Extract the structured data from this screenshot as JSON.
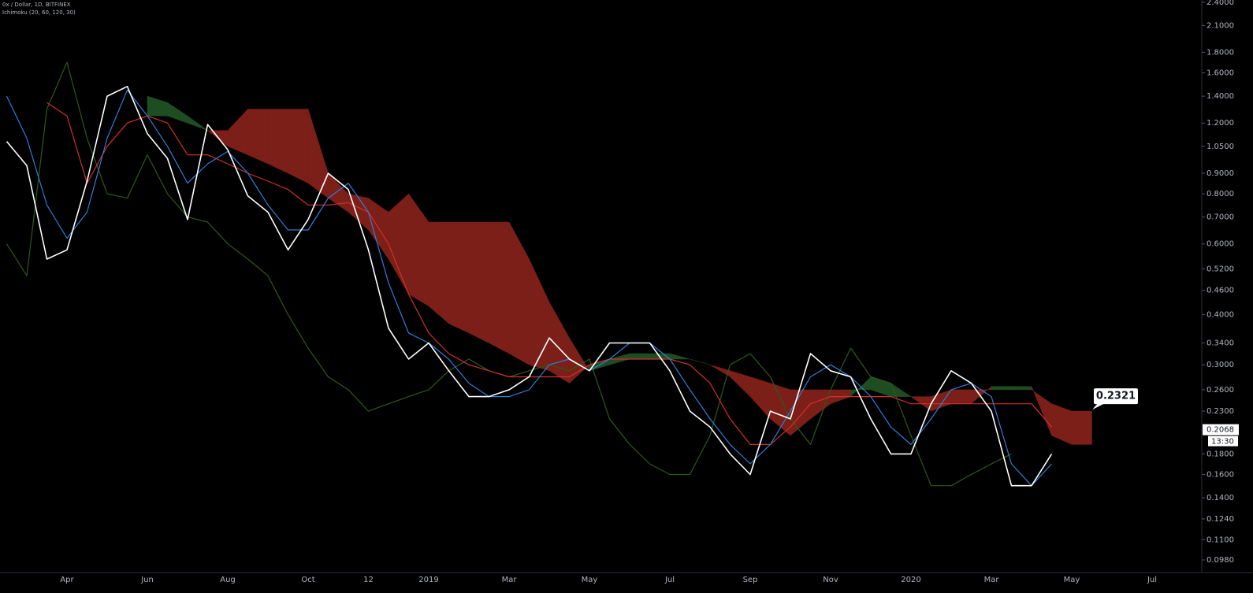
{
  "chart_data": {
    "type": "ichimoku",
    "title": "0x / Dollar, 1D, BITFINEX",
    "subtitle": "Ichimoku (20, 60, 120, 30)",
    "log_scale": true,
    "categories": [
      null,
      null,
      null,
      "Apr",
      null,
      null,
      null,
      "Jun",
      null,
      null,
      null,
      "Aug",
      null,
      null,
      null,
      "Oct",
      null,
      null,
      "12",
      null,
      null,
      "2019",
      null,
      null,
      null,
      "Mar",
      null,
      null,
      null,
      "May",
      null,
      null,
      null,
      "Jul",
      null,
      null,
      null,
      "Sep",
      null,
      null,
      null,
      "Nov",
      null,
      null,
      null,
      "2020",
      null,
      null,
      null,
      "Mar",
      null,
      null,
      null,
      "May",
      null,
      null,
      null,
      "Jul"
    ],
    "series": [
      {
        "color": "#2d5a15",
        "values": [
          0.6,
          0.5,
          1.3,
          1.7,
          1.1,
          0.8,
          0.78,
          1.0,
          0.8,
          0.7,
          0.68,
          0.6,
          0.55,
          0.5,
          0.4,
          0.33,
          0.28,
          0.26,
          0.23,
          0.24,
          0.25,
          0.26,
          0.29,
          0.31,
          0.29,
          0.28,
          0.29,
          0.3,
          0.29,
          0.31,
          0.22,
          0.19,
          0.17,
          0.16,
          0.16,
          0.2,
          0.3,
          0.32,
          0.28,
          0.22,
          0.19,
          0.26,
          0.33,
          0.28,
          0.27,
          0.2,
          0.15,
          0.15,
          0.16,
          0.17,
          0.18,
          null,
          null,
          null,
          null,
          null,
          null,
          null
        ]
      },
      {
        "color": "#d0302a",
        "values": [
          null,
          null,
          1.35,
          1.25,
          0.85,
          1.05,
          1.2,
          1.25,
          1.2,
          1.0,
          1.0,
          0.95,
          0.9,
          0.86,
          0.82,
          0.75,
          0.75,
          0.76,
          0.72,
          0.6,
          0.45,
          0.36,
          0.32,
          0.3,
          0.29,
          0.28,
          0.28,
          0.28,
          0.28,
          0.3,
          0.31,
          0.31,
          0.31,
          0.31,
          0.3,
          0.27,
          0.22,
          0.19,
          0.19,
          0.21,
          0.24,
          0.25,
          0.25,
          0.25,
          0.25,
          0.24,
          0.24,
          0.24,
          0.24,
          0.24,
          0.24,
          0.24,
          0.21,
          null,
          null,
          null,
          null,
          null
        ]
      },
      {
        "color": "#2e7ed6",
        "values": [
          1.4,
          1.1,
          0.75,
          0.62,
          0.72,
          1.1,
          1.45,
          1.25,
          1.05,
          0.85,
          0.95,
          1.02,
          0.9,
          0.75,
          0.65,
          0.65,
          0.78,
          0.85,
          0.72,
          0.48,
          0.36,
          0.34,
          0.31,
          0.27,
          0.25,
          0.25,
          0.26,
          0.3,
          0.31,
          0.29,
          0.31,
          0.34,
          0.34,
          0.31,
          0.26,
          0.22,
          0.19,
          0.17,
          0.19,
          0.23,
          0.28,
          0.3,
          0.28,
          0.25,
          0.21,
          0.19,
          0.22,
          0.26,
          0.27,
          0.25,
          0.17,
          0.15,
          0.17,
          null,
          null,
          null,
          null,
          null
        ]
      },
      {
        "color": "#ffffff",
        "values": [
          1.08,
          0.94,
          0.55,
          0.58,
          0.86,
          1.4,
          1.48,
          1.13,
          0.98,
          0.69,
          1.19,
          1.03,
          0.79,
          0.72,
          0.58,
          0.69,
          0.9,
          0.82,
          0.58,
          0.37,
          0.31,
          0.34,
          0.29,
          0.25,
          0.25,
          0.26,
          0.28,
          0.35,
          0.31,
          0.29,
          0.34,
          0.34,
          0.34,
          0.29,
          0.23,
          0.21,
          0.18,
          0.16,
          0.23,
          0.22,
          0.32,
          0.29,
          0.28,
          0.22,
          0.18,
          0.18,
          0.24,
          0.29,
          0.27,
          0.23,
          0.15,
          0.15,
          0.18,
          null,
          null,
          null,
          null,
          null
        ]
      }
    ],
    "cloud": {
      "up_color": "#1f4d22",
      "down_color": "#7b1f18",
      "span_a": [
        null,
        null,
        null,
        null,
        null,
        null,
        null,
        1.4,
        1.35,
        1.25,
        1.15,
        1.05,
        1.0,
        0.95,
        0.9,
        0.85,
        0.78,
        0.72,
        0.65,
        0.55,
        0.45,
        0.42,
        0.38,
        0.36,
        0.34,
        0.32,
        0.3,
        0.29,
        0.27,
        0.3,
        0.31,
        0.32,
        0.32,
        0.32,
        0.31,
        0.3,
        0.28,
        0.25,
        0.22,
        0.2,
        0.22,
        0.24,
        0.25,
        0.28,
        0.27,
        0.25,
        0.23,
        0.24,
        0.24,
        0.265,
        0.265,
        0.265,
        0.2,
        0.19,
        0.19,
        null,
        null,
        null
      ],
      "span_b": [
        null,
        null,
        null,
        null,
        null,
        null,
        null,
        1.25,
        1.25,
        1.2,
        1.15,
        1.15,
        1.3,
        1.3,
        1.3,
        1.3,
        0.9,
        0.8,
        0.78,
        0.72,
        0.8,
        0.68,
        0.68,
        0.68,
        0.68,
        0.68,
        0.55,
        0.43,
        0.35,
        0.29,
        0.3,
        0.31,
        0.31,
        0.31,
        0.31,
        0.3,
        0.29,
        0.28,
        0.27,
        0.26,
        0.26,
        0.26,
        0.26,
        0.26,
        0.25,
        0.25,
        0.25,
        0.26,
        0.26,
        0.26,
        0.26,
        0.26,
        0.24,
        0.23,
        0.23,
        null,
        null,
        null
      ]
    },
    "ylim": [
      0.092,
      2.43
    ],
    "yticks": [
      {
        "value": 2.4,
        "label": "2.4000"
      },
      {
        "value": 2.1,
        "label": "2.1000"
      },
      {
        "value": 1.8,
        "label": "1.8000"
      },
      {
        "value": 1.6,
        "label": "1.6000"
      },
      {
        "value": 1.4,
        "label": "1.4000"
      },
      {
        "value": 1.2,
        "label": "1.2000"
      },
      {
        "value": 1.05,
        "label": "1.0500"
      },
      {
        "value": 0.9,
        "label": "0.9000"
      },
      {
        "value": 0.8,
        "label": "0.8000"
      },
      {
        "value": 0.7,
        "label": "0.7000"
      },
      {
        "value": 0.6,
        "label": "0.6000"
      },
      {
        "value": 0.52,
        "label": "0.5200"
      },
      {
        "value": 0.46,
        "label": "0.4600"
      },
      {
        "value": 0.4,
        "label": "0.4000"
      },
      {
        "value": 0.34,
        "label": "0.3400"
      },
      {
        "value": 0.3,
        "label": "0.3000"
      },
      {
        "value": 0.26,
        "label": "0.2600"
      },
      {
        "value": 0.23,
        "label": "0.2300"
      },
      {
        "value": 0.18,
        "label": "0.1800"
      },
      {
        "value": 0.16,
        "label": "0.1600"
      },
      {
        "value": 0.14,
        "label": "0.1400"
      },
      {
        "value": 0.124,
        "label": "0.1240"
      },
      {
        "value": 0.11,
        "label": "0.1100"
      },
      {
        "value": 0.098,
        "label": "0.0980"
      }
    ],
    "last_price": {
      "value": 0.2068,
      "label": "0.2068"
    },
    "countdown": "13:30",
    "annotation": {
      "value": 0.2321,
      "label": "0.2321"
    }
  }
}
